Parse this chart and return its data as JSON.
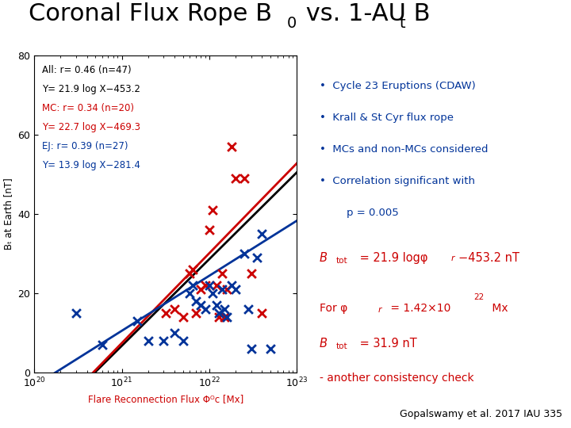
{
  "title_main": "Coronal Flux Rope B",
  "title_sub0": "0",
  "title_mid": " vs. 1-AU B",
  "title_subt": "t",
  "xlabel": "Flare Reconnection Flux Φᴼᴄ [Mx]",
  "ylabel": "Bₜ at Earth [nT]",
  "xlim": [
    1e+20,
    1e+23
  ],
  "ylim": [
    0,
    80
  ],
  "yticks": [
    0,
    20,
    40,
    60,
    80
  ],
  "ref": "Gopalswamy et al. 2017 IAU 335",
  "color_black": "#000000",
  "color_red": "#cc0000",
  "color_blue": "#003399",
  "ann_all_1": "All: r= 0.46 (n=47)",
  "ann_all_2": "Y= 21.9 log X−453.2",
  "ann_mc_1": "MC: r= 0.34 (n=20)",
  "ann_mc_2": "Y= 22.7 log X−469.3",
  "ann_ej_1": "EJ: r= 0.39 (n=27)",
  "ann_ej_2": "Y= 13.9 log X−281.4",
  "bullet_items": [
    "Cycle 23 Eruptions (CDAW)",
    "Krall & St Cyr flux rope",
    "MCs and non-MCs considered",
    "Correlation significant with"
  ],
  "bullet_extra": "    p = 0.005",
  "mc_x": [
    3.2e+21,
    4e+21,
    5e+21,
    6e+21,
    6.5e+21,
    7e+21,
    8e+21,
    9e+21,
    1e+22,
    1.1e+22,
    1.2e+22,
    1.3e+22,
    1.4e+22,
    1.5e+22,
    1.6e+22,
    1.8e+22,
    2e+22,
    2.5e+22,
    3e+22,
    4e+22
  ],
  "mc_y": [
    15,
    16,
    14,
    25,
    26,
    15,
    21,
    22,
    36,
    41,
    22,
    14,
    25,
    14,
    21,
    57,
    49,
    49,
    25,
    15
  ],
  "ej_x": [
    3e+20,
    6e+20,
    1.5e+21,
    2e+21,
    3e+21,
    4e+21,
    5e+21,
    6e+21,
    6.5e+21,
    7e+21,
    8e+21,
    9e+21,
    1e+22,
    1.1e+22,
    1.2e+22,
    1.3e+22,
    1.4e+22,
    1.5e+22,
    1.6e+22,
    1.8e+22,
    2e+22,
    2.5e+22,
    2.8e+22,
    3e+22,
    3.5e+22,
    4e+22,
    5e+22
  ],
  "ej_y": [
    15,
    7,
    13,
    8,
    8,
    10,
    8,
    20,
    22,
    18,
    17,
    16,
    22,
    20,
    17,
    15,
    21,
    16,
    14,
    22,
    21,
    30,
    16,
    6,
    29,
    35,
    6
  ],
  "fit_all_slope": 21.9,
  "fit_all_intercept": -453.2,
  "fit_mc_slope": 22.7,
  "fit_mc_intercept": -469.3,
  "fit_ej_slope": 13.9,
  "fit_ej_intercept": -281.4
}
